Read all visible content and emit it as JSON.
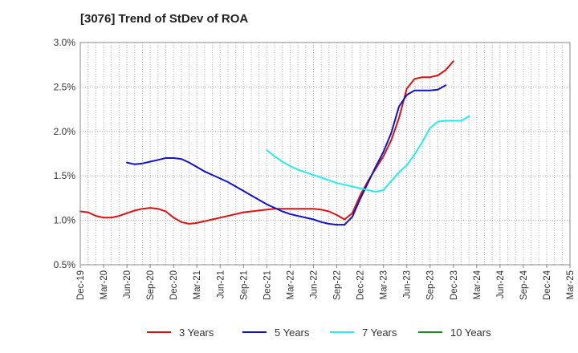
{
  "chart_data": {
    "type": "line",
    "title": "[3076]  Trend of StDev of ROA",
    "xlabel": "",
    "ylabel": "",
    "ylim": [
      0.5,
      3.0
    ],
    "yticks": [
      "0.5%",
      "1.0%",
      "1.5%",
      "2.0%",
      "2.5%",
      "3.0%"
    ],
    "ytick_values": [
      0.5,
      1.0,
      1.5,
      2.0,
      2.5,
      3.0
    ],
    "xticks": [
      "Dec-19",
      "Mar-20",
      "Jun-20",
      "Sep-20",
      "Dec-20",
      "Mar-21",
      "Jun-21",
      "Sep-21",
      "Dec-21",
      "Mar-22",
      "Jun-22",
      "Sep-22",
      "Dec-22",
      "Mar-23",
      "Jun-23",
      "Sep-23",
      "Dec-23",
      "Mar-24",
      "Jun-24",
      "Sep-24",
      "Dec-24",
      "Mar-25"
    ],
    "grid": true,
    "legend_position": "bottom",
    "series": [
      {
        "name": "3 Years",
        "color": "#dd1111",
        "points": [
          [
            0,
            1.1
          ],
          [
            1,
            1.09
          ],
          [
            2,
            1.05
          ],
          [
            3,
            1.03
          ],
          [
            4,
            1.03
          ],
          [
            5,
            1.05
          ],
          [
            6,
            1.08
          ],
          [
            7,
            1.11
          ],
          [
            8,
            1.13
          ],
          [
            9,
            1.14
          ],
          [
            10,
            1.13
          ],
          [
            11,
            1.1
          ],
          [
            12,
            1.03
          ],
          [
            13,
            0.98
          ],
          [
            14,
            0.96
          ],
          [
            15,
            0.97
          ],
          [
            16,
            0.99
          ],
          [
            17,
            1.01
          ],
          [
            18,
            1.03
          ],
          [
            19,
            1.05
          ],
          [
            20,
            1.07
          ],
          [
            21,
            1.09
          ],
          [
            22,
            1.1
          ],
          [
            23,
            1.11
          ],
          [
            24,
            1.12
          ],
          [
            25,
            1.13
          ],
          [
            26,
            1.13
          ],
          [
            27,
            1.13
          ],
          [
            28,
            1.13
          ],
          [
            29,
            1.13
          ],
          [
            30,
            1.13
          ],
          [
            31,
            1.12
          ],
          [
            32,
            1.1
          ],
          [
            33,
            1.06
          ],
          [
            34,
            1.01
          ],
          [
            35,
            1.08
          ],
          [
            36,
            1.28
          ],
          [
            37,
            1.44
          ],
          [
            38,
            1.58
          ],
          [
            39,
            1.72
          ],
          [
            40,
            1.9
          ],
          [
            41,
            2.15
          ],
          [
            42,
            2.48
          ],
          [
            43,
            2.59
          ],
          [
            44,
            2.61
          ],
          [
            45,
            2.61
          ],
          [
            46,
            2.63
          ],
          [
            47,
            2.69
          ],
          [
            48,
            2.79
          ]
        ]
      },
      {
        "name": "5 Years",
        "color": "#1111cc",
        "points": [
          [
            6,
            1.65
          ],
          [
            7,
            1.63
          ],
          [
            8,
            1.64
          ],
          [
            9,
            1.66
          ],
          [
            10,
            1.68
          ],
          [
            11,
            1.7
          ],
          [
            12,
            1.7
          ],
          [
            13,
            1.69
          ],
          [
            14,
            1.65
          ],
          [
            15,
            1.6
          ],
          [
            16,
            1.55
          ],
          [
            17,
            1.51
          ],
          [
            18,
            1.47
          ],
          [
            19,
            1.43
          ],
          [
            20,
            1.38
          ],
          [
            21,
            1.33
          ],
          [
            22,
            1.28
          ],
          [
            23,
            1.23
          ],
          [
            24,
            1.18
          ],
          [
            25,
            1.14
          ],
          [
            26,
            1.1
          ],
          [
            27,
            1.07
          ],
          [
            28,
            1.05
          ],
          [
            29,
            1.03
          ],
          [
            30,
            1.01
          ],
          [
            31,
            0.98
          ],
          [
            32,
            0.96
          ],
          [
            33,
            0.95
          ],
          [
            34,
            0.95
          ],
          [
            35,
            1.04
          ],
          [
            36,
            1.24
          ],
          [
            37,
            1.42
          ],
          [
            38,
            1.6
          ],
          [
            39,
            1.77
          ],
          [
            40,
            1.98
          ],
          [
            41,
            2.28
          ],
          [
            42,
            2.41
          ],
          [
            43,
            2.46
          ],
          [
            44,
            2.46
          ],
          [
            45,
            2.46
          ],
          [
            46,
            2.47
          ],
          [
            47,
            2.52
          ]
        ]
      },
      {
        "name": "7 Years",
        "color": "#22eeee",
        "points": [
          [
            24,
            1.79
          ],
          [
            25,
            1.72
          ],
          [
            26,
            1.66
          ],
          [
            27,
            1.61
          ],
          [
            28,
            1.57
          ],
          [
            29,
            1.54
          ],
          [
            30,
            1.51
          ],
          [
            31,
            1.48
          ],
          [
            32,
            1.45
          ],
          [
            33,
            1.42
          ],
          [
            34,
            1.4
          ],
          [
            35,
            1.38
          ],
          [
            36,
            1.36
          ],
          [
            37,
            1.34
          ],
          [
            38,
            1.32
          ],
          [
            39,
            1.34
          ],
          [
            40,
            1.44
          ],
          [
            41,
            1.54
          ],
          [
            42,
            1.62
          ],
          [
            43,
            1.74
          ],
          [
            44,
            1.88
          ],
          [
            45,
            2.04
          ],
          [
            46,
            2.11
          ],
          [
            47,
            2.12
          ],
          [
            48,
            2.12
          ],
          [
            49,
            2.12
          ],
          [
            50,
            2.17
          ]
        ]
      },
      {
        "name": "10 Years",
        "color": "#228822",
        "points": []
      }
    ]
  }
}
